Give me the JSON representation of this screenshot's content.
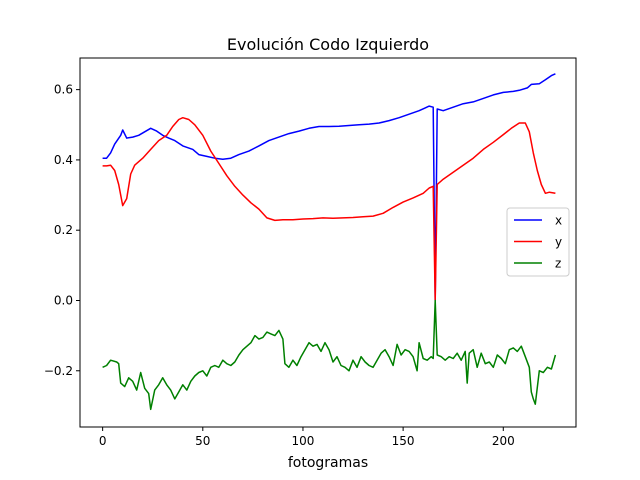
{
  "chart_data": {
    "type": "line",
    "title": "Evolución Codo Izquierdo",
    "xlabel": "fotogramas",
    "ylabel": "",
    "xlim": [
      -11.3,
      236.3
    ],
    "ylim": [
      -0.36,
      0.69
    ],
    "xticks": [
      0,
      50,
      100,
      150,
      200
    ],
    "yticks": [
      -0.2,
      0.0,
      0.2,
      0.4,
      0.6
    ],
    "ytick_labels": [
      "−0.2",
      "0.0",
      "0.2",
      "0.4",
      "0.6"
    ],
    "grid": false,
    "legend_position": "center-right",
    "series": [
      {
        "name": "x",
        "color": "#0000ff",
        "points": [
          [
            0,
            0.405
          ],
          [
            2,
            0.405
          ],
          [
            4,
            0.42
          ],
          [
            6,
            0.445
          ],
          [
            9,
            0.47
          ],
          [
            10,
            0.485
          ],
          [
            12,
            0.462
          ],
          [
            15,
            0.465
          ],
          [
            18,
            0.47
          ],
          [
            21,
            0.48
          ],
          [
            24,
            0.49
          ],
          [
            27,
            0.482
          ],
          [
            30,
            0.47
          ],
          [
            33,
            0.462
          ],
          [
            36,
            0.455
          ],
          [
            40,
            0.44
          ],
          [
            45,
            0.43
          ],
          [
            48,
            0.415
          ],
          [
            52,
            0.41
          ],
          [
            56,
            0.405
          ],
          [
            60,
            0.402
          ],
          [
            64,
            0.405
          ],
          [
            68,
            0.415
          ],
          [
            73,
            0.425
          ],
          [
            78,
            0.44
          ],
          [
            83,
            0.455
          ],
          [
            88,
            0.465
          ],
          [
            93,
            0.475
          ],
          [
            98,
            0.482
          ],
          [
            103,
            0.49
          ],
          [
            108,
            0.495
          ],
          [
            113,
            0.495
          ],
          [
            118,
            0.496
          ],
          [
            123,
            0.498
          ],
          [
            128,
            0.5
          ],
          [
            133,
            0.502
          ],
          [
            138,
            0.505
          ],
          [
            143,
            0.512
          ],
          [
            148,
            0.52
          ],
          [
            153,
            0.53
          ],
          [
            158,
            0.54
          ],
          [
            161,
            0.548
          ],
          [
            163,
            0.553
          ],
          [
            165,
            0.55
          ],
          [
            166,
            0.0
          ],
          [
            167,
            0.545
          ],
          [
            170,
            0.54
          ],
          [
            175,
            0.55
          ],
          [
            180,
            0.56
          ],
          [
            185,
            0.565
          ],
          [
            190,
            0.575
          ],
          [
            195,
            0.585
          ],
          [
            200,
            0.592
          ],
          [
            205,
            0.595
          ],
          [
            208,
            0.598
          ],
          [
            212,
            0.605
          ],
          [
            214,
            0.615
          ],
          [
            218,
            0.617
          ],
          [
            221,
            0.628
          ],
          [
            224,
            0.64
          ],
          [
            226,
            0.645
          ]
        ]
      },
      {
        "name": "y",
        "color": "#ff0000",
        "points": [
          [
            0,
            0.383
          ],
          [
            2,
            0.383
          ],
          [
            4,
            0.385
          ],
          [
            6,
            0.37
          ],
          [
            8,
            0.33
          ],
          [
            10,
            0.27
          ],
          [
            12,
            0.29
          ],
          [
            14,
            0.36
          ],
          [
            16,
            0.385
          ],
          [
            20,
            0.405
          ],
          [
            24,
            0.43
          ],
          [
            28,
            0.455
          ],
          [
            32,
            0.47
          ],
          [
            35,
            0.495
          ],
          [
            38,
            0.515
          ],
          [
            40,
            0.52
          ],
          [
            43,
            0.515
          ],
          [
            46,
            0.5
          ],
          [
            50,
            0.47
          ],
          [
            54,
            0.425
          ],
          [
            58,
            0.39
          ],
          [
            62,
            0.355
          ],
          [
            66,
            0.325
          ],
          [
            70,
            0.3
          ],
          [
            74,
            0.278
          ],
          [
            78,
            0.26
          ],
          [
            82,
            0.235
          ],
          [
            86,
            0.228
          ],
          [
            90,
            0.23
          ],
          [
            95,
            0.23
          ],
          [
            100,
            0.232
          ],
          [
            105,
            0.233
          ],
          [
            110,
            0.235
          ],
          [
            115,
            0.234
          ],
          [
            120,
            0.235
          ],
          [
            125,
            0.236
          ],
          [
            130,
            0.238
          ],
          [
            135,
            0.24
          ],
          [
            140,
            0.248
          ],
          [
            145,
            0.265
          ],
          [
            150,
            0.28
          ],
          [
            155,
            0.292
          ],
          [
            160,
            0.305
          ],
          [
            163,
            0.32
          ],
          [
            165,
            0.325
          ],
          [
            166,
            0.0
          ],
          [
            167,
            0.33
          ],
          [
            170,
            0.345
          ],
          [
            175,
            0.365
          ],
          [
            180,
            0.385
          ],
          [
            185,
            0.405
          ],
          [
            190,
            0.43
          ],
          [
            195,
            0.45
          ],
          [
            200,
            0.472
          ],
          [
            204,
            0.49
          ],
          [
            208,
            0.505
          ],
          [
            211,
            0.505
          ],
          [
            213,
            0.48
          ],
          [
            215,
            0.42
          ],
          [
            217,
            0.37
          ],
          [
            219,
            0.33
          ],
          [
            221,
            0.305
          ],
          [
            223,
            0.308
          ],
          [
            226,
            0.305
          ]
        ]
      },
      {
        "name": "z",
        "color": "#008000",
        "points": [
          [
            0,
            -0.19
          ],
          [
            2,
            -0.185
          ],
          [
            4,
            -0.17
          ],
          [
            7,
            -0.175
          ],
          [
            8,
            -0.18
          ],
          [
            9,
            -0.235
          ],
          [
            11,
            -0.245
          ],
          [
            13,
            -0.22
          ],
          [
            15,
            -0.23
          ],
          [
            17,
            -0.255
          ],
          [
            19,
            -0.205
          ],
          [
            21,
            -0.25
          ],
          [
            23,
            -0.265
          ],
          [
            24,
            -0.31
          ],
          [
            26,
            -0.255
          ],
          [
            28,
            -0.24
          ],
          [
            30,
            -0.22
          ],
          [
            32,
            -0.24
          ],
          [
            34,
            -0.255
          ],
          [
            36,
            -0.28
          ],
          [
            38,
            -0.26
          ],
          [
            40,
            -0.24
          ],
          [
            42,
            -0.255
          ],
          [
            44,
            -0.23
          ],
          [
            46,
            -0.215
          ],
          [
            48,
            -0.205
          ],
          [
            50,
            -0.2
          ],
          [
            52,
            -0.215
          ],
          [
            54,
            -0.19
          ],
          [
            56,
            -0.185
          ],
          [
            58,
            -0.19
          ],
          [
            60,
            -0.17
          ],
          [
            62,
            -0.18
          ],
          [
            64,
            -0.185
          ],
          [
            66,
            -0.175
          ],
          [
            68,
            -0.155
          ],
          [
            70,
            -0.14
          ],
          [
            72,
            -0.13
          ],
          [
            74,
            -0.12
          ],
          [
            76,
            -0.1
          ],
          [
            78,
            -0.11
          ],
          [
            80,
            -0.105
          ],
          [
            82,
            -0.09
          ],
          [
            84,
            -0.095
          ],
          [
            86,
            -0.1
          ],
          [
            88,
            -0.085
          ],
          [
            90,
            -0.11
          ],
          [
            91,
            -0.18
          ],
          [
            93,
            -0.19
          ],
          [
            95,
            -0.17
          ],
          [
            97,
            -0.185
          ],
          [
            99,
            -0.16
          ],
          [
            101,
            -0.14
          ],
          [
            103,
            -0.12
          ],
          [
            105,
            -0.13
          ],
          [
            107,
            -0.125
          ],
          [
            109,
            -0.145
          ],
          [
            111,
            -0.12
          ],
          [
            113,
            -0.14
          ],
          [
            115,
            -0.175
          ],
          [
            117,
            -0.16
          ],
          [
            119,
            -0.185
          ],
          [
            121,
            -0.19
          ],
          [
            123,
            -0.2
          ],
          [
            125,
            -0.17
          ],
          [
            127,
            -0.19
          ],
          [
            129,
            -0.16
          ],
          [
            131,
            -0.175
          ],
          [
            133,
            -0.185
          ],
          [
            135,
            -0.19
          ],
          [
            137,
            -0.17
          ],
          [
            139,
            -0.15
          ],
          [
            141,
            -0.14
          ],
          [
            143,
            -0.16
          ],
          [
            145,
            -0.185
          ],
          [
            147,
            -0.125
          ],
          [
            149,
            -0.155
          ],
          [
            151,
            -0.14
          ],
          [
            153,
            -0.145
          ],
          [
            155,
            -0.16
          ],
          [
            157,
            -0.2
          ],
          [
            158,
            -0.12
          ],
          [
            160,
            -0.165
          ],
          [
            162,
            -0.17
          ],
          [
            164,
            -0.16
          ],
          [
            165,
            -0.165
          ],
          [
            166,
            0.0
          ],
          [
            167,
            -0.155
          ],
          [
            169,
            -0.16
          ],
          [
            171,
            -0.17
          ],
          [
            173,
            -0.16
          ],
          [
            175,
            -0.165
          ],
          [
            177,
            -0.15
          ],
          [
            179,
            -0.17
          ],
          [
            181,
            -0.145
          ],
          [
            182,
            -0.235
          ],
          [
            183,
            -0.15
          ],
          [
            185,
            -0.14
          ],
          [
            187,
            -0.19
          ],
          [
            189,
            -0.15
          ],
          [
            191,
            -0.18
          ],
          [
            193,
            -0.175
          ],
          [
            195,
            -0.19
          ],
          [
            197,
            -0.155
          ],
          [
            199,
            -0.165
          ],
          [
            201,
            -0.18
          ],
          [
            203,
            -0.14
          ],
          [
            205,
            -0.135
          ],
          [
            207,
            -0.145
          ],
          [
            209,
            -0.13
          ],
          [
            211,
            -0.16
          ],
          [
            213,
            -0.19
          ],
          [
            214,
            -0.26
          ],
          [
            215,
            -0.28
          ],
          [
            216,
            -0.295
          ],
          [
            218,
            -0.2
          ],
          [
            220,
            -0.205
          ],
          [
            222,
            -0.19
          ],
          [
            224,
            -0.195
          ],
          [
            226,
            -0.155
          ]
        ]
      }
    ]
  }
}
